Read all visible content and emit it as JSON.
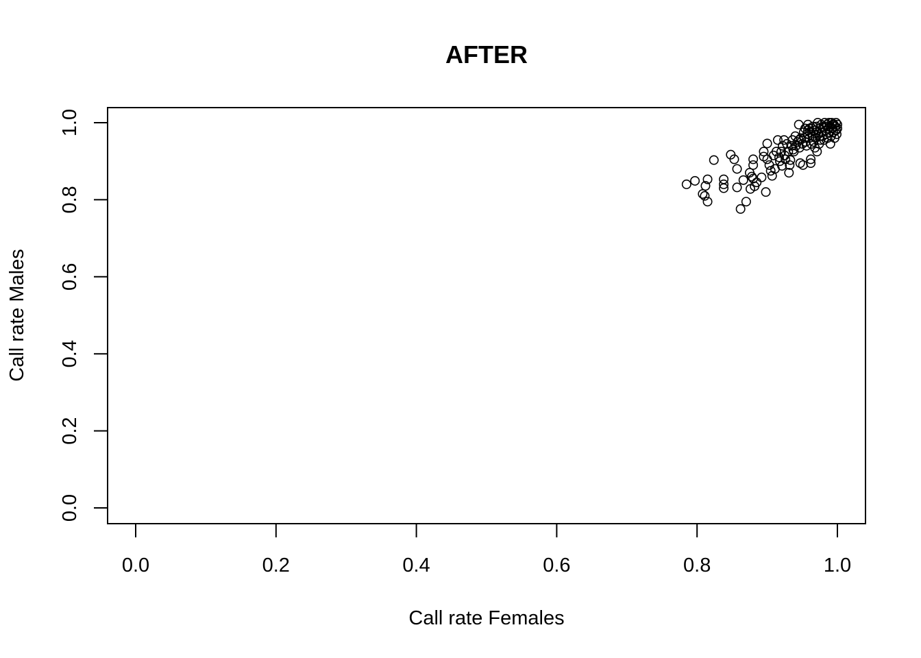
{
  "chart_data": {
    "type": "scatter",
    "title": "AFTER",
    "xlabel": "Call rate Females",
    "ylabel": "Call rate Males",
    "xlim": [
      0.0,
      1.0
    ],
    "ylim": [
      0.0,
      1.0
    ],
    "x_ticks": [
      "0.0",
      "0.2",
      "0.4",
      "0.6",
      "0.8",
      "1.0"
    ],
    "y_ticks": [
      "0.0",
      "0.2",
      "0.4",
      "0.6",
      "0.8",
      "1.0"
    ],
    "grid": false,
    "marker": "open-circle",
    "points": [
      [
        0.785,
        0.84
      ],
      [
        0.797,
        0.849
      ],
      [
        0.808,
        0.815
      ],
      [
        0.811,
        0.81
      ],
      [
        0.812,
        0.836
      ],
      [
        0.815,
        0.795
      ],
      [
        0.815,
        0.853
      ],
      [
        0.824,
        0.903
      ],
      [
        0.838,
        0.853
      ],
      [
        0.838,
        0.84
      ],
      [
        0.838,
        0.83
      ],
      [
        0.848,
        0.917
      ],
      [
        0.853,
        0.905
      ],
      [
        0.857,
        0.88
      ],
      [
        0.857,
        0.832
      ],
      [
        0.862,
        0.776
      ],
      [
        0.866,
        0.851
      ],
      [
        0.87,
        0.795
      ],
      [
        0.875,
        0.87
      ],
      [
        0.876,
        0.828
      ],
      [
        0.878,
        0.86
      ],
      [
        0.88,
        0.905
      ],
      [
        0.88,
        0.89
      ],
      [
        0.88,
        0.855
      ],
      [
        0.882,
        0.835
      ],
      [
        0.885,
        0.845
      ],
      [
        0.892,
        0.858
      ],
      [
        0.895,
        0.925
      ],
      [
        0.895,
        0.912
      ],
      [
        0.898,
        0.82
      ],
      [
        0.9,
        0.946
      ],
      [
        0.9,
        0.905
      ],
      [
        0.903,
        0.89
      ],
      [
        0.905,
        0.875
      ],
      [
        0.907,
        0.862
      ],
      [
        0.909,
        0.915
      ],
      [
        0.911,
        0.88
      ],
      [
        0.913,
        0.925
      ],
      [
        0.915,
        0.955
      ],
      [
        0.917,
        0.91
      ],
      [
        0.918,
        0.9
      ],
      [
        0.92,
        0.925
      ],
      [
        0.921,
        0.888
      ],
      [
        0.922,
        0.94
      ],
      [
        0.924,
        0.955
      ],
      [
        0.925,
        0.915
      ],
      [
        0.926,
        0.905
      ],
      [
        0.928,
        0.945
      ],
      [
        0.93,
        0.925
      ],
      [
        0.931,
        0.87
      ],
      [
        0.932,
        0.89
      ],
      [
        0.933,
        0.903
      ],
      [
        0.935,
        0.94
      ],
      [
        0.936,
        0.955
      ],
      [
        0.938,
        0.925
      ],
      [
        0.94,
        0.965
      ],
      [
        0.941,
        0.94
      ],
      [
        0.943,
        0.95
      ],
      [
        0.945,
        0.995
      ],
      [
        0.946,
        0.935
      ],
      [
        0.947,
        0.895
      ],
      [
        0.948,
        0.96
      ],
      [
        0.95,
        0.945
      ],
      [
        0.951,
        0.89
      ],
      [
        0.952,
        0.975
      ],
      [
        0.953,
        0.96
      ],
      [
        0.954,
        0.985
      ],
      [
        0.955,
        0.95
      ],
      [
        0.956,
        0.94
      ],
      [
        0.957,
        0.97
      ],
      [
        0.958,
        0.995
      ],
      [
        0.96,
        0.96
      ],
      [
        0.961,
        0.975
      ],
      [
        0.962,
        0.905
      ],
      [
        0.962,
        0.895
      ],
      [
        0.963,
        0.945
      ],
      [
        0.964,
        0.985
      ],
      [
        0.965,
        0.965
      ],
      [
        0.966,
        0.95
      ],
      [
        0.967,
        0.98
      ],
      [
        0.968,
        0.935
      ],
      [
        0.969,
        0.96
      ],
      [
        0.97,
        0.99
      ],
      [
        0.971,
        0.925
      ],
      [
        0.972,
        1.0
      ],
      [
        0.973,
        0.97
      ],
      [
        0.974,
        0.945
      ],
      [
        0.975,
        0.985
      ],
      [
        0.976,
        0.955
      ],
      [
        0.977,
        0.995
      ],
      [
        0.978,
        0.975
      ],
      [
        0.979,
        0.965
      ],
      [
        0.98,
        0.99
      ],
      [
        0.981,
        0.955
      ],
      [
        0.982,
        1.0
      ],
      [
        0.983,
        0.98
      ],
      [
        0.984,
        0.97
      ],
      [
        0.985,
        0.995
      ],
      [
        0.986,
        0.96
      ],
      [
        0.987,
        0.985
      ],
      [
        0.988,
        1.0
      ],
      [
        0.989,
        0.975
      ],
      [
        0.99,
        0.945
      ],
      [
        0.99,
        0.99
      ],
      [
        0.991,
        0.965
      ],
      [
        0.992,
        1.0
      ],
      [
        0.993,
        0.985
      ],
      [
        0.994,
        0.975
      ],
      [
        0.995,
        0.995
      ],
      [
        0.996,
        0.96
      ],
      [
        0.997,
        0.99
      ],
      [
        0.998,
        1.0
      ],
      [
        0.998,
        0.98
      ],
      [
        0.999,
        0.97
      ],
      [
        1.0,
        0.995
      ],
      [
        1.0,
        0.985
      ],
      [
        0.965,
        0.99
      ],
      [
        0.958,
        0.98
      ],
      [
        0.975,
        0.965
      ],
      [
        0.985,
        0.99
      ],
      [
        0.993,
        0.995
      ],
      [
        0.97,
        0.975
      ],
      [
        0.96,
        0.985
      ],
      [
        0.945,
        0.955
      ],
      [
        0.937,
        0.93
      ]
    ]
  }
}
